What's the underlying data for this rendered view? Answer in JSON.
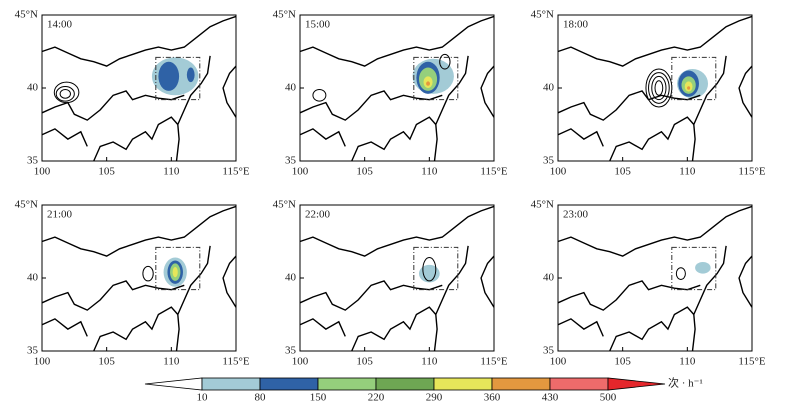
{
  "chart_data": {
    "type": "map",
    "panels": [
      {
        "label": "14:00"
      },
      {
        "label": "15:00"
      },
      {
        "label": "18:00"
      },
      {
        "label": "21:00"
      },
      {
        "label": "22:00"
      },
      {
        "label": "23:00"
      }
    ],
    "xlim": [
      100,
      115
    ],
    "xticks": [
      100,
      105,
      110,
      {
        "value": 115,
        "label": "115°E"
      }
    ],
    "ylim": [
      35,
      45
    ],
    "yticks": [
      35,
      40,
      {
        "value": 45,
        "label": "45°N"
      }
    ],
    "colorbar": {
      "levels": [
        10,
        80,
        150,
        220,
        290,
        360,
        430,
        500
      ],
      "colors": [
        "#ffffff",
        "#a3cbd6",
        "#2f62a6",
        "#95cf7c",
        "#6ea653",
        "#e6e65a",
        "#e3983f",
        "#ee6b6b",
        "#e5262b"
      ],
      "unit": "次 · h⁻¹"
    }
  }
}
